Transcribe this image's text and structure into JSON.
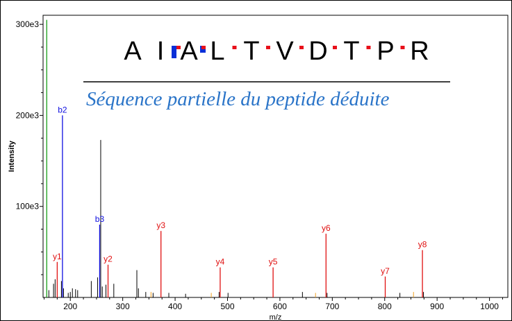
{
  "sequence": {
    "residues": [
      "A",
      "I",
      "A",
      "L",
      "T",
      "V",
      "D",
      "T",
      "P",
      "R"
    ],
    "colors": {
      "b_ion": "#0a2fd8",
      "y_ion": "#e8101a"
    }
  },
  "caption": "Séquence partielle du peptide déduite",
  "chart_data": {
    "type": "bar",
    "xlabel": "m/z",
    "ylabel": "Intensity",
    "xlim": [
      148,
      1035
    ],
    "ylim": [
      0,
      310000
    ],
    "xticks": [
      200,
      300,
      400,
      500,
      600,
      700,
      800,
      900,
      1000
    ],
    "yticks": [
      {
        "value": 100000,
        "label": "100e3"
      },
      {
        "value": 200000,
        "label": "200e3"
      },
      {
        "value": 300000,
        "label": "300e3"
      }
    ],
    "colors": {
      "b": "#1010e0",
      "y": "#e01010",
      "other": "#000000",
      "precursor": "#1aa01a",
      "minor": "#f0a020"
    },
    "peaks_b": [
      {
        "mz": 185,
        "intensity": 200000,
        "label": "b2"
      },
      {
        "mz": 256,
        "intensity": 80000,
        "label": "b3"
      }
    ],
    "peaks_y": [
      {
        "mz": 175,
        "intensity": 39000,
        "label": "y1"
      },
      {
        "mz": 272,
        "intensity": 36000,
        "label": "y2"
      },
      {
        "mz": 373,
        "intensity": 73000,
        "label": "y3"
      },
      {
        "mz": 486,
        "intensity": 33000,
        "label": "y4"
      },
      {
        "mz": 587,
        "intensity": 33000,
        "label": "y5"
      },
      {
        "mz": 688,
        "intensity": 70000,
        "label": "y6"
      },
      {
        "mz": 801,
        "intensity": 23000,
        "label": "y7"
      },
      {
        "mz": 872,
        "intensity": 52000,
        "label": "y8"
      }
    ],
    "peaks_other": [
      {
        "mz": 159,
        "intensity": 8000
      },
      {
        "mz": 168,
        "intensity": 15000
      },
      {
        "mz": 171,
        "intensity": 20000
      },
      {
        "mz": 183,
        "intensity": 18000
      },
      {
        "mz": 187,
        "intensity": 10000
      },
      {
        "mz": 196,
        "intensity": 5000
      },
      {
        "mz": 200,
        "intensity": 6000
      },
      {
        "mz": 204,
        "intensity": 10000
      },
      {
        "mz": 210,
        "intensity": 9000
      },
      {
        "mz": 214,
        "intensity": 8000
      },
      {
        "mz": 240,
        "intensity": 18000
      },
      {
        "mz": 252,
        "intensity": 22000
      },
      {
        "mz": 258,
        "intensity": 173000
      },
      {
        "mz": 261,
        "intensity": 12000
      },
      {
        "mz": 268,
        "intensity": 14000
      },
      {
        "mz": 283,
        "intensity": 15000
      },
      {
        "mz": 327,
        "intensity": 30000
      },
      {
        "mz": 330,
        "intensity": 10000
      },
      {
        "mz": 344,
        "intensity": 6000
      },
      {
        "mz": 358,
        "intensity": 5000
      },
      {
        "mz": 388,
        "intensity": 5000
      },
      {
        "mz": 420,
        "intensity": 4000
      },
      {
        "mz": 484,
        "intensity": 6000
      },
      {
        "mz": 501,
        "intensity": 5000
      },
      {
        "mz": 643,
        "intensity": 6000
      },
      {
        "mz": 690,
        "intensity": 5000
      },
      {
        "mz": 829,
        "intensity": 5000
      },
      {
        "mz": 874,
        "intensity": 6000
      }
    ],
    "peaks_precursor": [
      {
        "mz": 155,
        "intensity": 305000
      }
    ],
    "peaks_minor": [
      {
        "mz": 354,
        "intensity": 6000
      },
      {
        "mz": 469,
        "intensity": 5000
      },
      {
        "mz": 668,
        "intensity": 5000
      },
      {
        "mz": 855,
        "intensity": 6000
      }
    ]
  }
}
